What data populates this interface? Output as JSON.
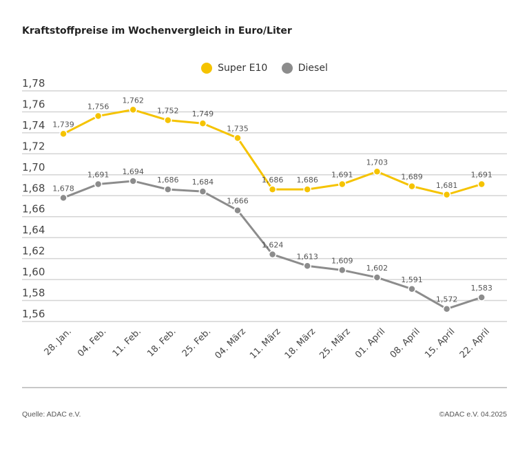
{
  "chart_data": {
    "type": "line",
    "title": "Kraftstoffpreise im Wochenvergleich in Euro/Liter",
    "categories": [
      "28. Jan.",
      "04. Feb.",
      "11. Feb.",
      "18. Feb.",
      "25. Feb.",
      "04. März",
      "11. März",
      "18. März",
      "25. März",
      "01. April",
      "08. April",
      "15. April",
      "22. April"
    ],
    "series": [
      {
        "name": "Super E10",
        "color": "#f5c300",
        "values": [
          1.739,
          1.756,
          1.762,
          1.752,
          1.749,
          1.735,
          1.686,
          1.686,
          1.691,
          1.703,
          1.689,
          1.681,
          1.691
        ],
        "labels": [
          "1,739",
          "1,756",
          "1,762",
          "1,752",
          "1,749",
          "1,735",
          "1,686",
          "1,686",
          "1,691",
          "1,703",
          "1,689",
          "1,681",
          "1,691"
        ]
      },
      {
        "name": "Diesel",
        "color": "#8c8c8c",
        "values": [
          1.678,
          1.691,
          1.694,
          1.686,
          1.684,
          1.666,
          1.624,
          1.613,
          1.609,
          1.602,
          1.591,
          1.572,
          1.583
        ],
        "labels": [
          "1,678",
          "1,691",
          "1,694",
          "1,686",
          "1,684",
          "1,666",
          "1,624",
          "1,613",
          "1,609",
          "1,602",
          "1,591",
          "1,572",
          "1,583"
        ]
      }
    ],
    "ylim": [
      1.56,
      1.78
    ],
    "yticks": [
      1.78,
      1.76,
      1.74,
      1.72,
      1.7,
      1.68,
      1.66,
      1.64,
      1.62,
      1.6,
      1.58,
      1.56
    ],
    "ytick_labels": [
      "1,78",
      "1,76",
      "1,74",
      "1,72",
      "1,70",
      "1,68",
      "1,66",
      "1,64",
      "1,62",
      "1,60",
      "1,58",
      "1,56"
    ],
    "grid": true,
    "legend_placement": "top-center"
  },
  "footer": {
    "source": "Quelle: ADAC e.V.",
    "copyright": "©ADAC e.V. 04.2025"
  }
}
